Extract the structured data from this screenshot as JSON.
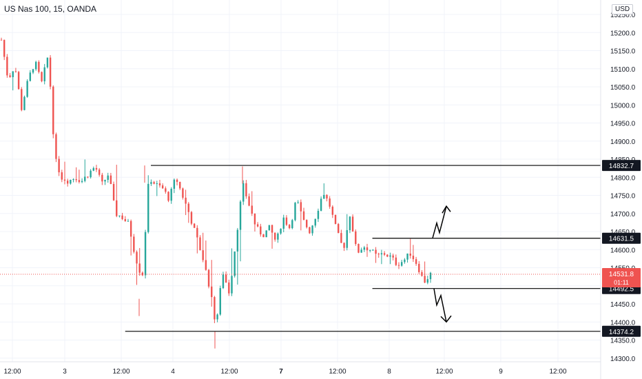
{
  "header": {
    "title": "US Nas 100, 15, OANDA",
    "currency": "USD"
  },
  "colors": {
    "up": "#26a69a",
    "down": "#ef5350",
    "grid": "#f0f3fa",
    "axis_text": "#131722",
    "line": "#000000",
    "price_tag": "#ef5350"
  },
  "chart_data": {
    "type": "candlestick",
    "title": "US Nas 100, 15, OANDA",
    "ylim": [
      14290,
      15290
    ],
    "y_ticks": [
      "15250.0",
      "15200.0",
      "15150.0",
      "15100.0",
      "15050.0",
      "15000.0",
      "14950.0",
      "14900.0",
      "14850.0",
      "14800.0",
      "14750.0",
      "14700.0",
      "14650.0",
      "14600.0",
      "14550.0",
      "14500.0",
      "14450.0",
      "14400.0",
      "14350.0",
      "14300.0"
    ],
    "x_ticks": [
      "12:00",
      "3",
      "12:00",
      "4",
      "12:00",
      "7",
      "12:00",
      "8",
      "12:00",
      "9",
      "12:00"
    ],
    "bold_x_ticks": [
      "7"
    ],
    "grid": true,
    "price_path": [
      [
        0,
        15180,
        15220,
        15130
      ],
      [
        1,
        15070,
        15120,
        14990
      ],
      [
        2,
        15110,
        15160,
        15060
      ],
      [
        3,
        14990,
        15020,
        14955
      ],
      [
        4,
        15070,
        15110,
        15040
      ],
      [
        5,
        15120,
        15150,
        15080
      ],
      [
        6,
        15060,
        15110,
        15040
      ],
      [
        7,
        15140,
        15165,
        15120
      ],
      [
        8,
        14850,
        15130,
        14830
      ],
      [
        9,
        14800,
        14870,
        14785
      ],
      [
        10,
        14790,
        14810,
        14775
      ],
      [
        11,
        14800,
        14830,
        14790
      ],
      [
        12,
        14790,
        14815,
        14775
      ],
      [
        13,
        14810,
        14890,
        14800
      ],
      [
        14,
        14830,
        14860,
        14800
      ],
      [
        15,
        14780,
        14820,
        14770
      ],
      [
        16,
        14810,
        14850,
        14790
      ],
      [
        17,
        14700,
        14860,
        14690
      ],
      [
        18,
        14690,
        14720,
        14660
      ],
      [
        19,
        14670,
        14700,
        14620
      ],
      [
        20,
        14580,
        14660,
        14510
      ],
      [
        21,
        14520,
        14570,
        14470
      ],
      [
        22,
        14800,
        14830,
        14510
      ],
      [
        23,
        14780,
        14820,
        14750
      ],
      [
        24,
        14770,
        14800,
        14740
      ],
      [
        25,
        14740,
        14780,
        14710
      ],
      [
        26,
        14800,
        14830,
        14770
      ],
      [
        27,
        14750,
        14790,
        14720
      ],
      [
        28,
        14700,
        14740,
        14670
      ],
      [
        29,
        14640,
        14690,
        14600
      ],
      [
        30,
        14580,
        14650,
        14550
      ],
      [
        31,
        14500,
        14600,
        14480
      ],
      [
        32,
        14390,
        14520,
        14374
      ],
      [
        33,
        14540,
        14560,
        14470
      ],
      [
        34,
        14480,
        14560,
        14450
      ],
      [
        35,
        14630,
        14680,
        14470
      ],
      [
        36,
        14780,
        14830,
        14620
      ],
      [
        37,
        14720,
        14780,
        14690
      ],
      [
        38,
        14660,
        14730,
        14640
      ],
      [
        39,
        14640,
        14700,
        14620
      ],
      [
        40,
        14660,
        14690,
        14610
      ],
      [
        41,
        14620,
        14680,
        14590
      ],
      [
        42,
        14690,
        14720,
        14640
      ],
      [
        43,
        14660,
        14720,
        14640
      ],
      [
        44,
        14740,
        14770,
        14680
      ],
      [
        45,
        14680,
        14740,
        14640
      ],
      [
        46,
        14650,
        14690,
        14620
      ],
      [
        47,
        14700,
        14740,
        14670
      ],
      [
        48,
        14760,
        14780,
        14700
      ],
      [
        49,
        14720,
        14810,
        14690
      ],
      [
        50,
        14650,
        14760,
        14610
      ],
      [
        51,
        14600,
        14660,
        14570
      ],
      [
        52,
        14700,
        14730,
        14650
      ],
      [
        53,
        14590,
        14730,
        14520
      ],
      [
        54,
        14610,
        14630,
        14580
      ],
      [
        55,
        14600,
        14620,
        14580
      ],
      [
        56,
        14580,
        14600,
        14560
      ],
      [
        57,
        14590,
        14610,
        14560
      ],
      [
        58,
        14580,
        14600,
        14560
      ],
      [
        59,
        14560,
        14610,
        14550
      ],
      [
        60,
        14570,
        14590,
        14540
      ],
      [
        61,
        14590,
        14630,
        14560
      ],
      [
        62,
        14560,
        14590,
        14530
      ],
      [
        63,
        14510,
        14570,
        14492
      ],
      [
        64,
        14531.8,
        14550,
        14500
      ]
    ],
    "horizontal_lines": [
      {
        "price": 14832.7,
        "label": "14832.7",
        "x_start": 0.235
      },
      {
        "price": 14631.5,
        "label": "14631.5",
        "x_start": 0.58
      },
      {
        "price": 14492.5,
        "label": "14492.5",
        "x_start": 0.58
      },
      {
        "price": 14374.2,
        "label": "14374.2",
        "x_start": 0.195
      }
    ],
    "current_price": {
      "price": 14531.8,
      "label": "14531.8",
      "countdown": "01:11"
    },
    "annotations": [
      {
        "type": "zigzag-arrow-up",
        "from": 14631.5,
        "to": 14720
      },
      {
        "type": "zigzag-arrow-down",
        "from": 14492.5,
        "to": 14400
      }
    ]
  }
}
